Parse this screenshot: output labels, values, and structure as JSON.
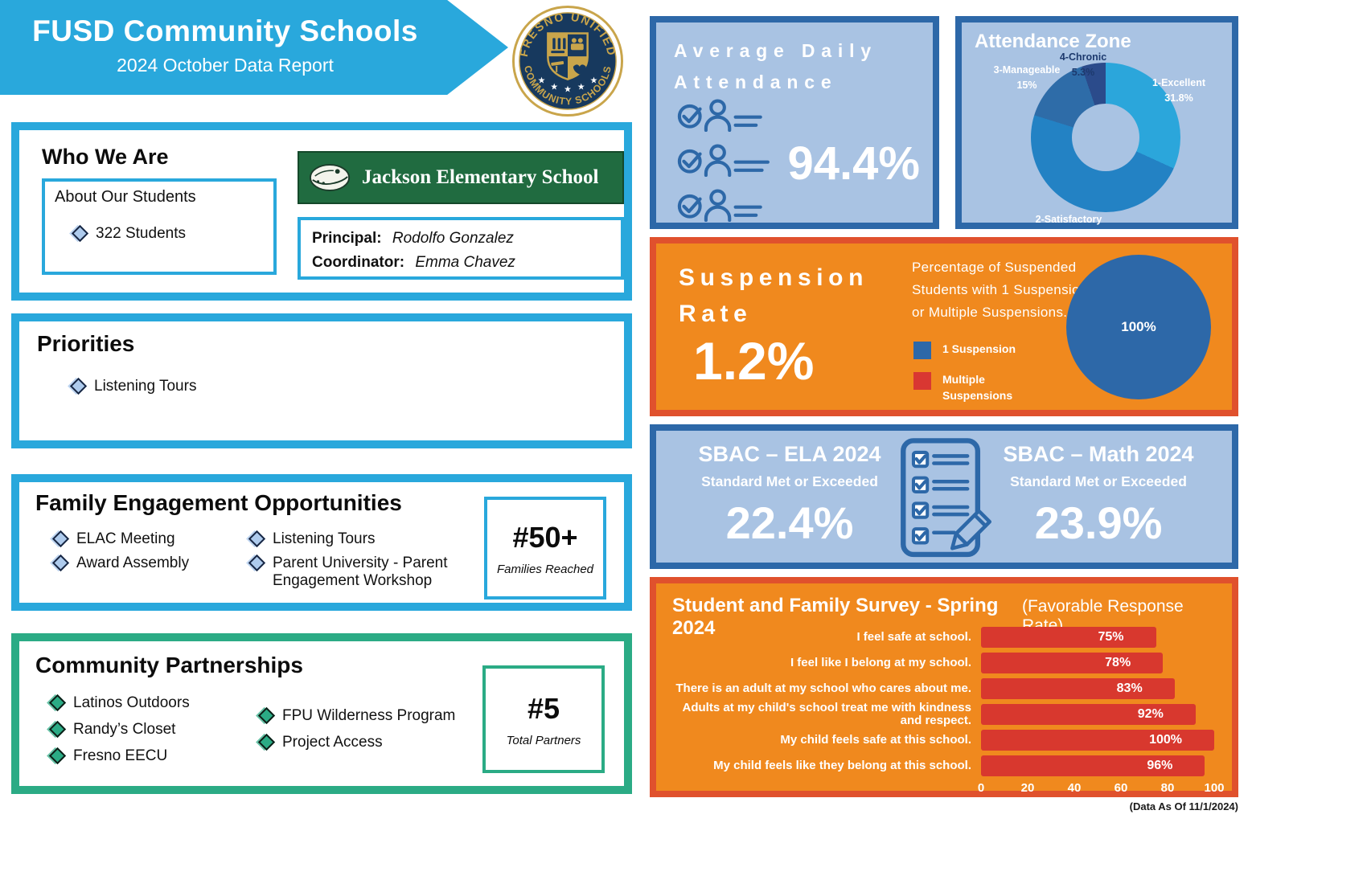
{
  "header": {
    "title": "FUSD Community Schools",
    "subtitle": "2024 October Data Report",
    "seal_top_text": "FRESNO UNIFIED",
    "seal_bottom_text": "COMMUNITY SCHOOLS"
  },
  "who_we_are": {
    "title": "Who We Are",
    "about_label": "About Our Students",
    "students": "322 Students",
    "school_name": "Jackson Elementary School",
    "principal_label": "Principal:",
    "principal_name": "Rodolfo Gonzalez",
    "coordinator_label": "Coordinator:",
    "coordinator_name": "Emma Chavez"
  },
  "priorities": {
    "title": "Priorities",
    "items": [
      "Listening Tours"
    ]
  },
  "family_engagement": {
    "title": "Family Engagement Opportunities",
    "col1": [
      "ELAC Meeting",
      "Award Assembly"
    ],
    "col2": [
      "Listening Tours",
      "Parent University - Parent Engagement Workshop"
    ],
    "stat_value": "#50+",
    "stat_label": "Families Reached"
  },
  "partnerships": {
    "title": "Community Partnerships",
    "col1": [
      "Latinos Outdoors",
      "Randy’s Closet",
      "Fresno EECU"
    ],
    "col2": [
      "FPU Wilderness Program",
      "Project Access"
    ],
    "stat_value": "#5",
    "stat_label": "Total Partners"
  },
  "attendance": {
    "title_line1": "Average Daily",
    "title_line2": "Attendance",
    "value": "94.4%"
  },
  "attendance_zone": {
    "title": "Attendance Zone",
    "chart_data": {
      "type": "pie",
      "donut": true,
      "segments": [
        {
          "label": "1-Excellent",
          "value": 31.8,
          "display": "31.8%",
          "color": "#2ba6db"
        },
        {
          "label": "2-Satisfactory",
          "value": 48,
          "display": "48%",
          "color": "#2382c4"
        },
        {
          "label": "3-Manageable",
          "value": 15,
          "display": "15%",
          "color": "#2e6ca8"
        },
        {
          "label": "4-Chronic",
          "value": 5.3,
          "display": "5.3%",
          "color": "#2b4b8b"
        }
      ]
    }
  },
  "suspension": {
    "title_line1": "Suspension",
    "title_line2": "Rate",
    "value": "1.2%",
    "description": "Percentage of Suspended Students with 1 Suspension or Multiple Suspensions.",
    "legend": [
      {
        "label": "1 Suspension",
        "color": "#2d68a8"
      },
      {
        "label": "Multiple Suspensions",
        "color": "#d93732"
      }
    ],
    "pie_label": "100%",
    "chart_data": {
      "type": "pie",
      "segments": [
        {
          "label": "1 Suspension",
          "value": 100,
          "color": "#2d68a8"
        },
        {
          "label": "Multiple Suspensions",
          "value": 0,
          "color": "#d93732"
        }
      ]
    }
  },
  "sbac": {
    "ela_title": "SBAC – ELA 2024",
    "ela_subtitle": "Standard Met or Exceeded",
    "ela_value": "22.4%",
    "math_title": "SBAC – Math 2024",
    "math_subtitle": "Standard Met or Exceeded",
    "math_value": "23.9%"
  },
  "survey": {
    "title": "Student and Family Survey - Spring 2024",
    "subtitle": "(Favorable Response Rate)",
    "chart_data": {
      "type": "bar",
      "orientation": "horizontal",
      "bar_color": "#d8382e",
      "xlim": [
        0,
        100
      ],
      "x_ticks": [
        "0",
        "20",
        "40",
        "60",
        "80",
        "100"
      ],
      "categories": [
        "I feel safe at school.",
        "I feel like I belong at my school.",
        "There is an adult at my school who cares about me.",
        "Adults at my child's school treat me with kindness and respect.",
        "My child feels safe at this school.",
        "My child feels like they belong at this school."
      ],
      "values": [
        75,
        78,
        83,
        92,
        100,
        96
      ]
    },
    "rows": [
      {
        "label": "I feel safe at school.",
        "value_label": "75%"
      },
      {
        "label": "I feel like I belong at my school.",
        "value_label": "78%"
      },
      {
        "label": "There is an adult at my school who cares about me.",
        "value_label": "83%"
      },
      {
        "label": "Adults at my child's school treat me with kindness and respect.",
        "value_label": "92%"
      },
      {
        "label": "My child feels safe at this school.",
        "value_label": "100%"
      },
      {
        "label": "My child feels like they belong at this school.",
        "value_label": "96%"
      }
    ]
  },
  "footer": {
    "data_as_of": "(Data As Of 11/1/2024)"
  },
  "colors": {
    "brand_cyan": "#29a8dc",
    "brand_green": "#2bab85",
    "panel_periwinkle": "#a9c3e3",
    "panel_border_blue": "#2d68a8",
    "panel_orange": "#f0891e",
    "panel_border_redorange": "#e0512d",
    "bar_red": "#d8382e",
    "school_banner_green": "#206b40",
    "seal_navy": "#17395e",
    "seal_gold": "#c9a54b"
  }
}
